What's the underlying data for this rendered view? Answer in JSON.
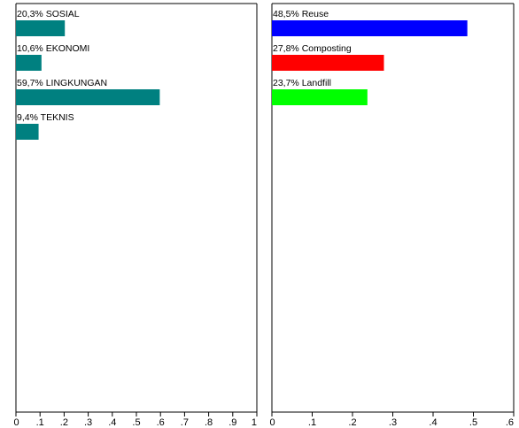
{
  "chart_data": [
    {
      "type": "bar",
      "orientation": "horizontal",
      "categories": [
        "20,3% SOSIAL",
        "10,6% EKONOMI",
        "59,7% LINGKUNGAN",
        "9,4% TEKNIS"
      ],
      "values": [
        0.203,
        0.106,
        0.597,
        0.094
      ],
      "colors": [
        "#008080",
        "#008080",
        "#008080",
        "#008080"
      ],
      "xlim": [
        0,
        1
      ],
      "ticks": [
        0,
        0.1,
        0.2,
        0.3,
        0.4,
        0.5,
        0.6,
        0.7,
        0.8,
        0.9,
        1
      ],
      "tick_labels": [
        "0",
        ".1",
        ".2",
        ".3",
        ".4",
        ".5",
        ".6",
        ".7",
        ".8",
        ".9",
        "1"
      ],
      "grid": false
    },
    {
      "type": "bar",
      "orientation": "horizontal",
      "categories": [
        "48,5% Reuse",
        "27,8% Composting",
        "23,7% Landfill"
      ],
      "values": [
        0.485,
        0.278,
        0.237
      ],
      "colors": [
        "#0000ff",
        "#ff0000",
        "#00ff00"
      ],
      "xlim": [
        0,
        0.6
      ],
      "ticks": [
        0,
        0.1,
        0.2,
        0.3,
        0.4,
        0.5,
        0.6
      ],
      "tick_labels": [
        "0",
        ".1",
        ".2",
        ".3",
        ".4",
        ".5",
        ".6"
      ],
      "grid": false
    }
  ]
}
